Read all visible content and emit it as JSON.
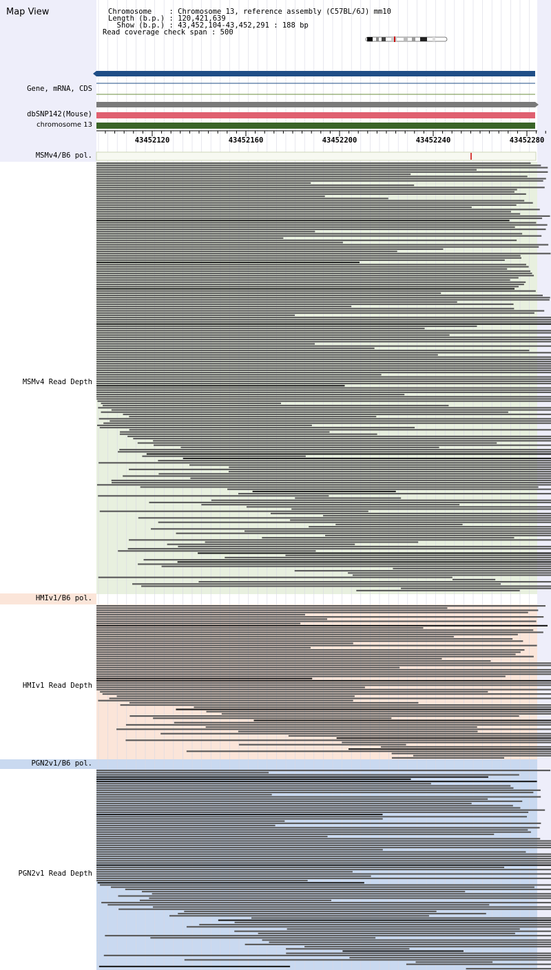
{
  "header": {
    "title": "Map View",
    "info_lines": [
      "Chromosome    : Chromosome 13, reference assembly (C57BL/6J) mm10",
      "Length (b.p.) : 120,421,639",
      "  Show (b.p.) : 43,452,104-43,452,291 : 188 bp",
      "Read coverage check span : 500"
    ]
  },
  "tracks": {
    "gene_label": "Gene, mRNA, CDS",
    "snp_label": "dbSNP142(Mouse)",
    "chrom_label": "chromosome 13",
    "msm_pol_label": "MSMv4/B6 pol.",
    "msm_depth_label": "MSMv4 Read Depth",
    "hmi_pol_label": "HMIv1/B6 pol.",
    "hmi_depth_label": "HMIv1 Read Depth",
    "pgn_pol_label": "PGN2v1/B6 pol.",
    "pgn_depth_label": "PGN2v1 Read Depth"
  },
  "axis": {
    "ticks": [
      "43452120",
      "43452160",
      "43452200",
      "43452240",
      "43452280"
    ]
  },
  "colors": {
    "gene_bar": "#1f4e87",
    "snp_bar": "#e06070",
    "chrom_bar": "#3a6427",
    "msm_bg": "#e8f0df",
    "hmi_bg": "#fbe5d9",
    "pgn_bg": "#c9d9f0",
    "read": "#5c5c5c",
    "read_dark": "#222222"
  }
}
